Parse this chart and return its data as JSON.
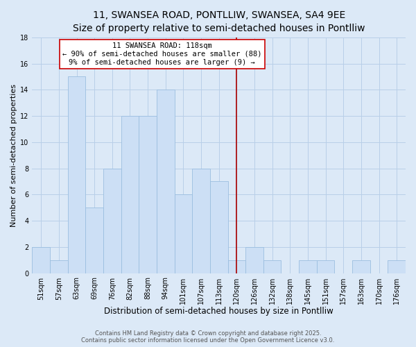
{
  "title": "11, SWANSEA ROAD, PONTLLIW, SWANSEA, SA4 9EE",
  "subtitle": "Size of property relative to semi-detached houses in Pontlliw",
  "xlabel": "Distribution of semi-detached houses by size in Pontlliw",
  "ylabel": "Number of semi-detached properties",
  "bin_labels": [
    "51sqm",
    "57sqm",
    "63sqm",
    "69sqm",
    "76sqm",
    "82sqm",
    "88sqm",
    "94sqm",
    "101sqm",
    "107sqm",
    "113sqm",
    "120sqm",
    "126sqm",
    "132sqm",
    "138sqm",
    "145sqm",
    "151sqm",
    "157sqm",
    "163sqm",
    "170sqm",
    "176sqm"
  ],
  "bar_heights": [
    2,
    1,
    15,
    5,
    8,
    12,
    12,
    14,
    6,
    8,
    7,
    1,
    2,
    1,
    0,
    1,
    1,
    0,
    1,
    0,
    1
  ],
  "bar_color": "#ccdff5",
  "bar_edge_color": "#9bbee0",
  "annotation_title": "11 SWANSEA ROAD: 118sqm",
  "annotation_line1": "← 90% of semi-detached houses are smaller (88)",
  "annotation_line2": "9% of semi-detached houses are larger (9) →",
  "vline_color": "#aa0000",
  "vline_x_index": 11,
  "ylim": [
    0,
    18
  ],
  "yticks": [
    0,
    2,
    4,
    6,
    8,
    10,
    12,
    14,
    16,
    18
  ],
  "background_color": "#dce9f7",
  "plot_bg_color": "#dce9f7",
  "grid_color": "#b8cfe8",
  "footer_line1": "Contains HM Land Registry data © Crown copyright and database right 2025.",
  "footer_line2": "Contains public sector information licensed under the Open Government Licence v3.0.",
  "title_fontsize": 10,
  "subtitle_fontsize": 9,
  "xlabel_fontsize": 8.5,
  "ylabel_fontsize": 8,
  "tick_fontsize": 7,
  "footer_fontsize": 6,
  "annotation_fontsize": 7.5
}
